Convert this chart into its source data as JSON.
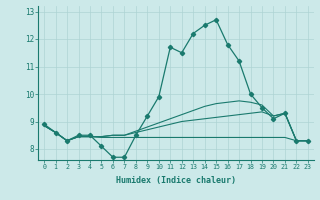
{
  "xlabel": "Humidex (Indice chaleur)",
  "xlim": [
    -0.5,
    23.5
  ],
  "ylim": [
    7.6,
    13.2
  ],
  "yticks": [
    8,
    9,
    10,
    11,
    12,
    13
  ],
  "xticks": [
    0,
    1,
    2,
    3,
    4,
    5,
    6,
    7,
    8,
    9,
    10,
    11,
    12,
    13,
    14,
    15,
    16,
    17,
    18,
    19,
    20,
    21,
    22,
    23
  ],
  "bg_color": "#cce9e9",
  "line_color": "#1a7a6e",
  "grid_color": "#aed4d4",
  "line1_x": [
    0,
    1,
    2,
    3,
    4,
    5,
    6,
    7,
    8,
    9,
    10,
    11,
    12,
    13,
    14,
    15,
    16,
    17,
    18,
    19,
    20,
    21,
    22,
    23
  ],
  "line1_y": [
    8.9,
    8.6,
    8.3,
    8.5,
    8.5,
    8.1,
    7.7,
    7.7,
    8.5,
    9.2,
    9.9,
    11.7,
    11.5,
    12.2,
    12.5,
    12.7,
    11.8,
    11.2,
    10.0,
    9.5,
    9.1,
    9.3,
    8.3,
    8.3
  ],
  "line2_x": [
    0,
    1,
    2,
    3,
    4,
    5,
    6,
    7,
    8,
    9,
    10,
    11,
    12,
    13,
    14,
    15,
    16,
    17,
    18,
    19,
    20,
    21,
    22,
    23
  ],
  "line2_y": [
    8.85,
    8.6,
    8.3,
    8.45,
    8.45,
    8.42,
    8.42,
    8.42,
    8.42,
    8.42,
    8.42,
    8.42,
    8.42,
    8.42,
    8.42,
    8.42,
    8.42,
    8.42,
    8.42,
    8.42,
    8.42,
    8.42,
    8.3,
    8.3
  ],
  "line3_x": [
    0,
    1,
    2,
    3,
    4,
    5,
    6,
    7,
    8,
    9,
    10,
    11,
    12,
    13,
    14,
    15,
    16,
    17,
    18,
    19,
    20,
    21,
    22,
    23
  ],
  "line3_y": [
    8.85,
    8.6,
    8.3,
    8.45,
    8.45,
    8.45,
    8.5,
    8.5,
    8.6,
    8.7,
    8.8,
    8.9,
    9.0,
    9.05,
    9.1,
    9.15,
    9.2,
    9.25,
    9.3,
    9.35,
    9.2,
    9.3,
    8.3,
    8.3
  ],
  "line4_x": [
    0,
    1,
    2,
    3,
    4,
    5,
    6,
    7,
    8,
    9,
    10,
    11,
    12,
    13,
    14,
    15,
    16,
    17,
    18,
    19,
    20,
    21,
    22,
    23
  ],
  "line4_y": [
    8.85,
    8.6,
    8.3,
    8.45,
    8.45,
    8.45,
    8.5,
    8.5,
    8.65,
    8.8,
    8.95,
    9.1,
    9.25,
    9.4,
    9.55,
    9.65,
    9.7,
    9.75,
    9.7,
    9.6,
    9.2,
    9.3,
    8.3,
    8.3
  ]
}
